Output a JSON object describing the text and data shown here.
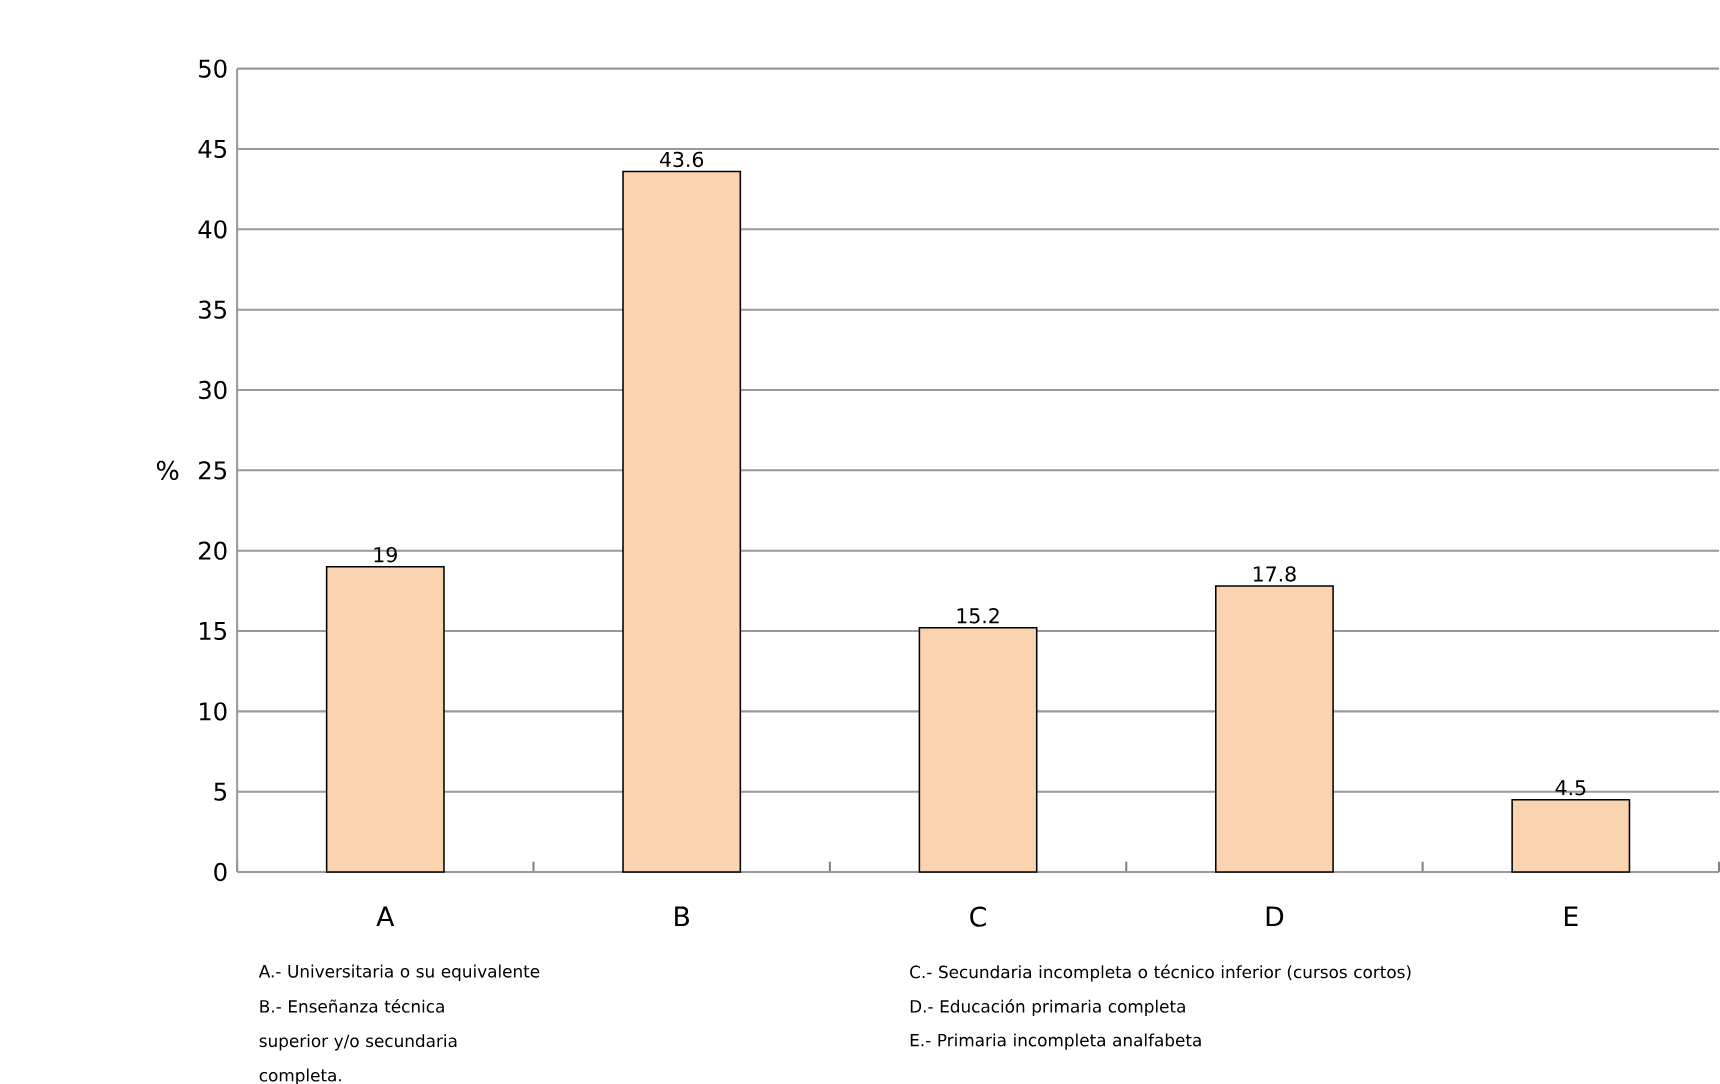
{
  "chart_data": {
    "type": "bar",
    "ylabel": "%",
    "categories": [
      "A",
      "B",
      "C",
      "D",
      "E"
    ],
    "values": [
      19,
      43.6,
      15.2,
      17.8,
      4.5
    ],
    "color": "#fad3b1",
    "ylim": [
      0,
      50
    ],
    "yticks": [
      0,
      5,
      10,
      15,
      20,
      25,
      30,
      35,
      40,
      45,
      50
    ],
    "grid": "y",
    "data_labels": true,
    "annotations": [
      "A.- Universitaria o su equivalente",
      "B.- Enseñanza técnica superior y/o secundaria completa.",
      "C.- Secundaria incompleta o técnico inferior (cursos cortos)",
      "D.- Educación primaria completa",
      "E.- Primaria incompleta analfabeta"
    ]
  }
}
